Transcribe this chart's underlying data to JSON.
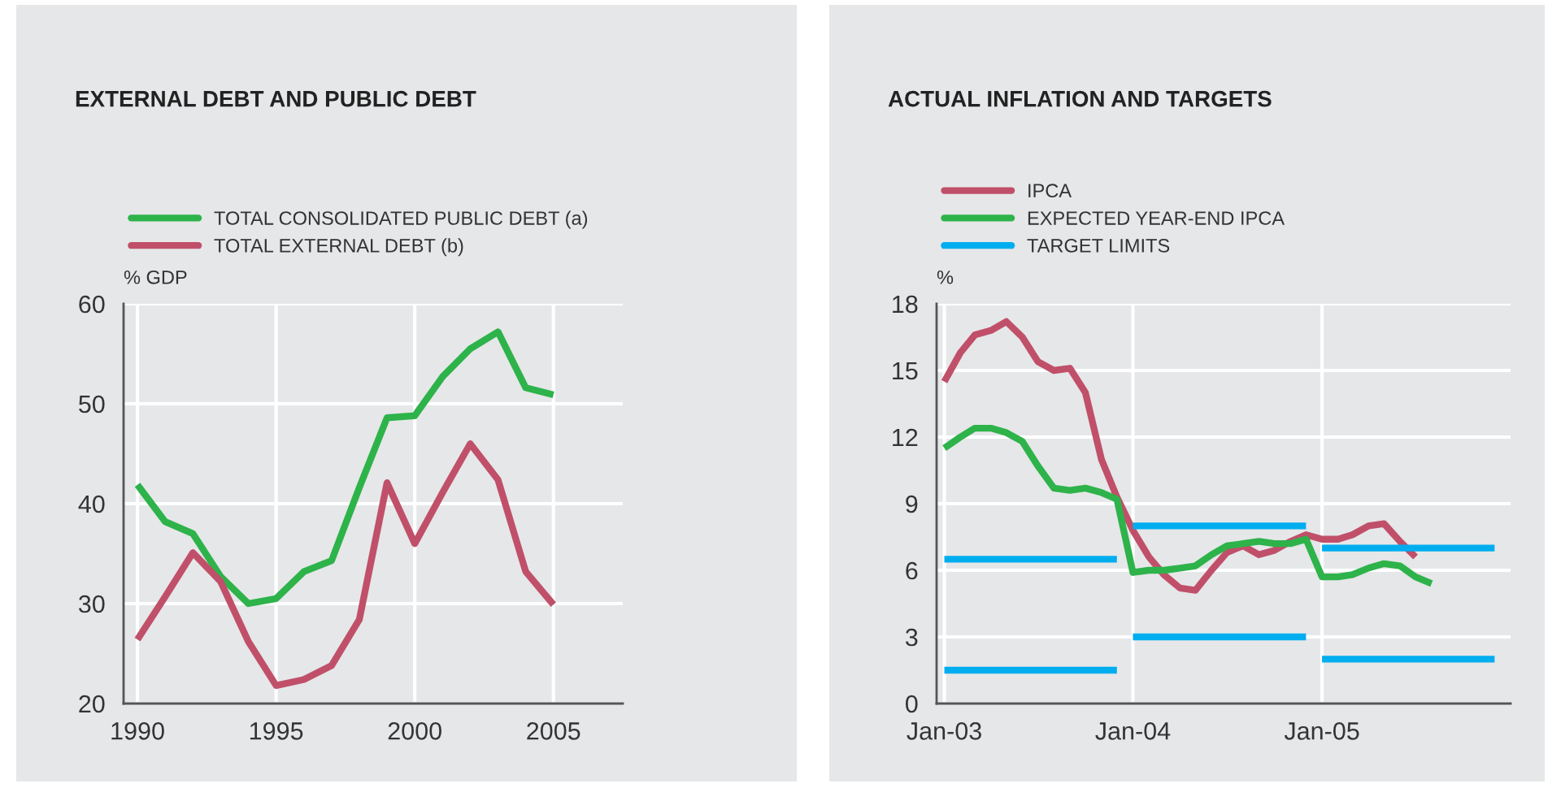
{
  "chart_data": [
    {
      "type": "line",
      "title": "EXTERNAL DEBT AND PUBLIC DEBT",
      "ylabel": "% GDP",
      "x": [
        1990,
        1991,
        1992,
        1993,
        1994,
        1995,
        1996,
        1997,
        1998,
        1999,
        2000,
        2001,
        2002,
        2003,
        2004,
        2005
      ],
      "series": [
        {
          "name": "TOTAL CONSOLIDATED PUBLIC DEBT (a)",
          "color": "#2db34a",
          "values": [
            41.9,
            38.2,
            37.0,
            32.7,
            30.0,
            30.5,
            33.2,
            34.3,
            41.6,
            48.6,
            48.8,
            52.7,
            55.5,
            57.2,
            51.6,
            50.9
          ]
        },
        {
          "name": "TOTAL EXTERNAL DEBT (b)",
          "color": "#c0506a",
          "values": [
            26.4,
            30.7,
            35.1,
            32.2,
            26.2,
            21.8,
            22.4,
            23.8,
            28.4,
            42.1,
            36.0,
            41.1,
            46.0,
            42.4,
            33.2,
            29.9
          ]
        }
      ],
      "xlim": [
        1989.5,
        2007.5
      ],
      "xticks": [
        1990,
        1995,
        2000,
        2005
      ],
      "ylim": [
        20,
        60
      ],
      "yticks": [
        20,
        30,
        40,
        50,
        60
      ],
      "grid": true,
      "legend": "top left",
      "line_style": "solid",
      "marker": "none"
    },
    {
      "type": "line",
      "title": "ACTUAL INFLATION AND TARGETS",
      "ylabel": "%",
      "x": [
        "2003-01",
        "2003-02",
        "2003-03",
        "2003-04",
        "2003-05",
        "2003-06",
        "2003-07",
        "2003-08",
        "2003-09",
        "2003-10",
        "2003-11",
        "2003-12",
        "2004-01",
        "2004-02",
        "2004-03",
        "2004-04",
        "2004-05",
        "2004-06",
        "2004-07",
        "2004-08",
        "2004-09",
        "2004-10",
        "2004-11",
        "2004-12",
        "2005-01",
        "2005-02",
        "2005-03",
        "2005-04",
        "2005-05",
        "2005-06",
        "2005-07",
        "2005-08"
      ],
      "series": [
        {
          "name": "IPCA",
          "color": "#c0506a",
          "values": [
            14.5,
            15.8,
            16.6,
            16.8,
            17.2,
            16.5,
            15.4,
            15.0,
            15.1,
            14.0,
            11.0,
            9.3,
            7.8,
            6.6,
            5.8,
            5.2,
            5.1,
            6.0,
            6.8,
            7.1,
            6.7,
            6.9,
            7.3,
            7.6,
            7.4,
            7.4,
            7.6,
            8.0,
            8.1,
            7.3,
            6.6,
            null
          ]
        },
        {
          "name": "EXPECTED YEAR-END IPCA",
          "color": "#2db34a",
          "values": [
            11.5,
            12.0,
            12.4,
            12.4,
            12.2,
            11.8,
            10.7,
            9.7,
            9.6,
            9.7,
            9.5,
            9.2,
            5.9,
            6.0,
            6.0,
            6.1,
            6.2,
            6.7,
            7.1,
            7.2,
            7.3,
            7.2,
            7.2,
            7.4,
            5.7,
            5.7,
            5.8,
            6.1,
            6.3,
            6.2,
            5.7,
            5.4
          ]
        },
        {
          "name": "TARGET LIMITS",
          "color": "#00aeef",
          "x": [
            "2003-01",
            "2003-12"
          ],
          "values": [
            6.5,
            6.5
          ]
        },
        {
          "color": "#00aeef",
          "x": [
            "2003-01",
            "2003-12"
          ],
          "values": [
            1.5,
            1.5
          ]
        },
        {
          "color": "#00aeef",
          "x": [
            "2004-01",
            "2004-12"
          ],
          "values": [
            8,
            8
          ]
        },
        {
          "color": "#00aeef",
          "x": [
            "2004-01",
            "2004-12"
          ],
          "values": [
            3,
            3
          ]
        },
        {
          "color": "#00aeef",
          "x": [
            "2005-01",
            "2005-12"
          ],
          "values": [
            7,
            7
          ]
        },
        {
          "color": "#00aeef",
          "x": [
            "2005-01",
            "2005-12"
          ],
          "values": [
            2,
            2
          ]
        }
      ],
      "xlim": [
        "2002-12-17",
        "2006-01-01"
      ],
      "xticks": [
        {
          "value": "2003-01",
          "label": "Jan-03"
        },
        {
          "value": "2004-01",
          "label": "Jan-04"
        },
        {
          "value": "2005-01",
          "label": "Jan-05"
        }
      ],
      "ylim": [
        0,
        18
      ],
      "yticks": [
        0,
        3,
        6,
        9,
        12,
        15,
        18
      ],
      "grid": true,
      "legend": "top left",
      "line_style": "solid",
      "marker": "none"
    }
  ]
}
